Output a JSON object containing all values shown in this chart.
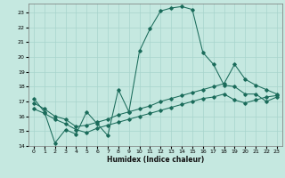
{
  "xlabel": "Humidex (Indice chaleur)",
  "bg_color": "#c5e8e0",
  "grid_color": "#a8d4cc",
  "line_color": "#1a6b5a",
  "xlim": [
    -0.5,
    23.5
  ],
  "ylim": [
    14,
    23.6
  ],
  "xticks": [
    0,
    1,
    2,
    3,
    4,
    5,
    6,
    7,
    8,
    9,
    10,
    11,
    12,
    13,
    14,
    15,
    16,
    17,
    18,
    19,
    20,
    21,
    22,
    23
  ],
  "yticks": [
    14,
    15,
    16,
    17,
    18,
    19,
    20,
    21,
    22,
    23
  ],
  "line1_x": [
    0,
    1,
    2,
    3,
    4,
    5,
    6,
    7,
    8,
    9,
    10,
    11,
    12,
    13,
    14,
    15,
    16,
    17,
    18,
    19,
    20,
    21,
    22,
    23
  ],
  "line1_y": [
    17.2,
    16.3,
    14.2,
    15.1,
    14.8,
    16.3,
    15.5,
    14.7,
    17.8,
    16.3,
    20.4,
    21.9,
    23.1,
    23.3,
    23.4,
    23.2,
    20.3,
    19.5,
    18.1,
    18.0,
    17.5,
    17.5,
    17.0,
    17.3
  ],
  "line2_x": [
    0,
    1,
    2,
    3,
    4,
    5,
    6,
    7,
    8,
    9,
    10,
    11,
    12,
    13,
    14,
    15,
    16,
    17,
    18,
    19,
    20,
    21,
    22,
    23
  ],
  "line2_y": [
    16.9,
    16.5,
    16.0,
    15.8,
    15.3,
    15.4,
    15.6,
    15.8,
    16.1,
    16.3,
    16.5,
    16.7,
    17.0,
    17.2,
    17.4,
    17.6,
    17.8,
    18.0,
    18.2,
    19.5,
    18.5,
    18.1,
    17.8,
    17.5
  ],
  "line3_x": [
    0,
    1,
    2,
    3,
    4,
    5,
    6,
    7,
    8,
    9,
    10,
    11,
    12,
    13,
    14,
    15,
    16,
    17,
    18,
    19,
    20,
    21,
    22,
    23
  ],
  "line3_y": [
    16.5,
    16.2,
    15.8,
    15.5,
    15.1,
    14.9,
    15.2,
    15.4,
    15.6,
    15.8,
    16.0,
    16.2,
    16.4,
    16.6,
    16.8,
    17.0,
    17.2,
    17.3,
    17.5,
    17.1,
    16.9,
    17.1,
    17.3,
    17.4
  ]
}
